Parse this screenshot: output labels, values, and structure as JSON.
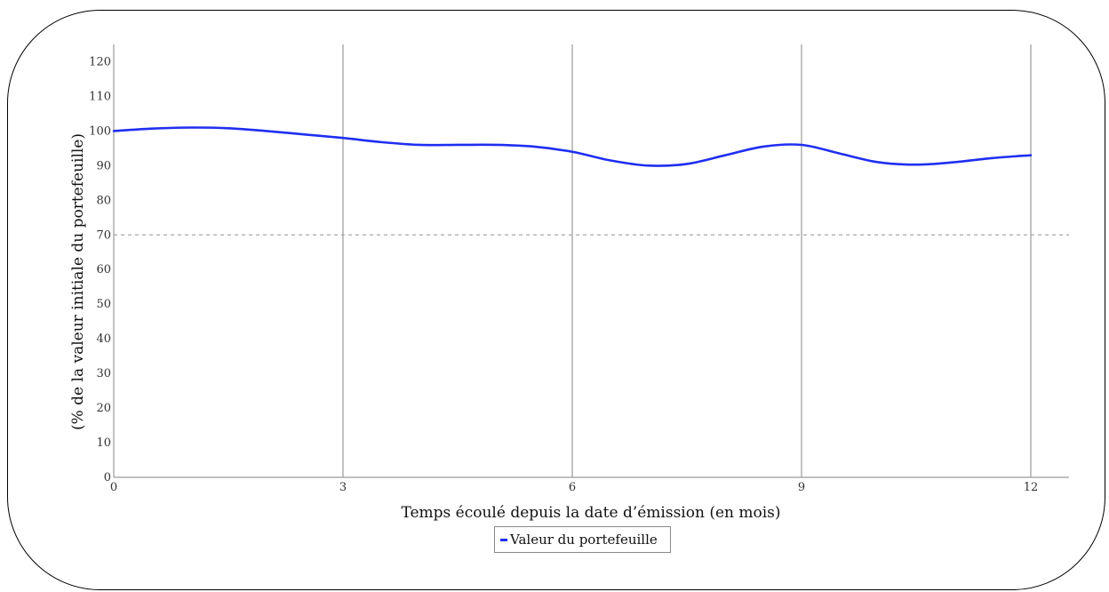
{
  "chart_data": {
    "type": "line",
    "title": "",
    "xlabel": "Temps écoulé depuis la date d’émission (en mois)",
    "ylabel": "(% de la valeur initiale du portefeuille)",
    "xlim": [
      0,
      12.5
    ],
    "ylim": [
      0,
      125
    ],
    "x_ticks": [
      0,
      3,
      6,
      9,
      12
    ],
    "y_ticks": [
      0,
      10,
      20,
      30,
      40,
      50,
      60,
      70,
      80,
      90,
      100,
      110,
      120
    ],
    "vertical_gridlines": [
      3,
      6,
      9,
      12
    ],
    "reference_line": {
      "y": 70,
      "style": "dashed"
    },
    "legend_position": "bottom-center",
    "series": [
      {
        "name": "Valeur du portefeuille",
        "color": "#1f2ff0",
        "x": [
          0,
          0.5,
          1,
          1.5,
          2,
          2.5,
          3,
          3.5,
          4,
          4.5,
          5,
          5.5,
          6,
          6.5,
          7,
          7.5,
          8,
          8.5,
          9,
          9.5,
          10,
          10.5,
          11,
          11.5,
          12
        ],
        "y": [
          100,
          100.7,
          101,
          100.8,
          100,
          99,
          98,
          96.8,
          96,
          96,
          96,
          95.5,
          94,
          91.5,
          90,
          90.5,
          93,
          95.5,
          96,
          93.5,
          91,
          90.3,
          91,
          92.2,
          93
        ]
      }
    ]
  },
  "legend": {
    "label": "Valeur du portefeuille"
  }
}
